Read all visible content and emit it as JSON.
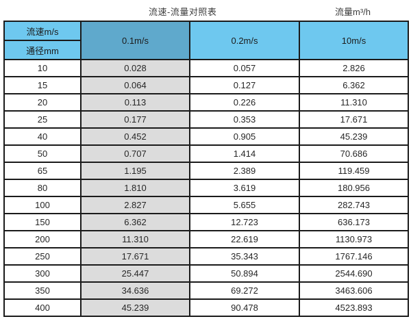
{
  "page_header": {
    "title": "流速-流量对照表",
    "flow_unit_label": "流量m³/h"
  },
  "table_header": {
    "top_left_row1": "流速m/s",
    "top_left_row2": "通径mm",
    "velocity_columns": [
      "0.1m/s",
      "0.2m/s",
      "10m/s"
    ]
  },
  "chart_data": {
    "type": "table",
    "title": "流速-流量对照表",
    "right_label": "流量m³/h",
    "row_axis_label": "通径mm",
    "column_axis_label": "流速m/s",
    "columns": [
      "通径mm",
      "0.1m/s",
      "0.2m/s",
      "10m/s"
    ],
    "rows": [
      [
        "10",
        "0.028",
        "0.057",
        "2.826"
      ],
      [
        "15",
        "0.064",
        "0.127",
        "6.362"
      ],
      [
        "20",
        "0.113",
        "0.226",
        "11.310"
      ],
      [
        "25",
        "0.177",
        "0.353",
        "17.671"
      ],
      [
        "40",
        "0.452",
        "0.905",
        "45.239"
      ],
      [
        "50",
        "0.707",
        "1.414",
        "70.686"
      ],
      [
        "65",
        "1.195",
        "2.389",
        "119.459"
      ],
      [
        "80",
        "1.810",
        "3.619",
        "180.956"
      ],
      [
        "100",
        "2.827",
        "5.655",
        "282.743"
      ],
      [
        "150",
        "6.362",
        "12.723",
        "636.173"
      ],
      [
        "200",
        "11.310",
        "22.619",
        "1130.973"
      ],
      [
        "250",
        "17.671",
        "35.343",
        "1767.146"
      ],
      [
        "300",
        "25.447",
        "50.894",
        "2544.690"
      ],
      [
        "350",
        "34.636",
        "69.272",
        "3463.606"
      ],
      [
        "400",
        "45.239",
        "90.478",
        "4523.893"
      ]
    ]
  },
  "colors": {
    "header_light_blue": "#6ec8ef",
    "header_dark_blue": "#5fa9cc",
    "highlight_column_gray": "#dcdcdc",
    "border": "#1a1a1a"
  }
}
